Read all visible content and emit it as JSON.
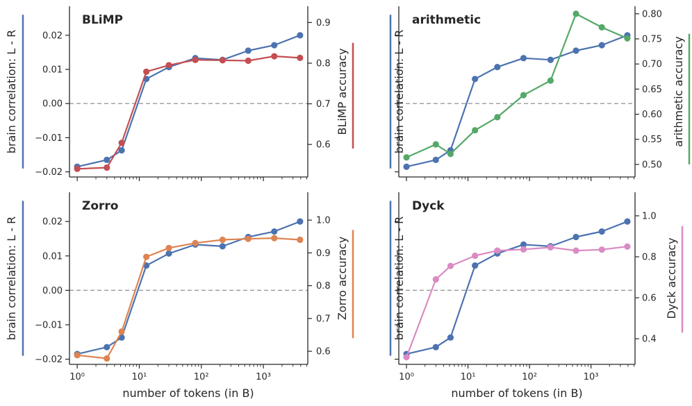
{
  "figure": {
    "xlabel": "number of tokens (in B)"
  },
  "styles": {
    "brain_color": "#4c72b0",
    "zero_line_color": "#999999"
  },
  "chart_data": [
    {
      "type": "line",
      "title": "BLiMP",
      "x": [
        1,
        3,
        5.2,
        13,
        30,
        80,
        220,
        570,
        1500,
        3900
      ],
      "xscale": "log",
      "xlim": [
        0.75,
        5200
      ],
      "xticks": [
        {
          "v": 1,
          "label": "10⁰"
        },
        {
          "v": 10,
          "label": "10¹"
        },
        {
          "v": 100,
          "label": "10²"
        },
        {
          "v": 1000,
          "label": "10³"
        }
      ],
      "left_axis": {
        "label": "brain correlation: L - R",
        "ylim": [
          -0.0215,
          0.0285
        ],
        "ticks": [
          -0.02,
          -0.01,
          0.0,
          0.01,
          0.02
        ],
        "tick_labels": [
          "−0.02",
          "−0.01",
          "0.00",
          "0.01",
          "0.02"
        ],
        "color": "#4c72b0"
      },
      "right_axis": {
        "label": "BLiMP accuracy",
        "ylim": [
          0.52,
          0.94
        ],
        "ticks": [
          0.6,
          0.7,
          0.8,
          0.9
        ],
        "tick_labels": [
          "0.6",
          "0.7",
          "0.8",
          "0.9"
        ],
        "color": "#c44e52",
        "bar_range": [
          0.59,
          0.85
        ]
      },
      "series": [
        {
          "name": "brain correlation",
          "axis": "left",
          "color": "#4c72b0",
          "values": [
            -0.0185,
            -0.0165,
            -0.0137,
            0.0072,
            0.0107,
            0.0133,
            0.0128,
            0.0155,
            0.0171,
            0.02
          ]
        },
        {
          "name": "BLiMP accuracy",
          "axis": "right",
          "color": "#c44e52",
          "values": [
            0.54,
            0.543,
            0.604,
            0.779,
            0.795,
            0.808,
            0.807,
            0.806,
            0.817,
            0.813
          ]
        }
      ]
    },
    {
      "type": "line",
      "title": "arithmetic",
      "x": [
        1,
        3,
        5.2,
        13,
        30,
        80,
        220,
        570,
        1500,
        3900
      ],
      "xscale": "log",
      "xlim": [
        0.75,
        5200
      ],
      "xticks": [
        {
          "v": 1,
          "label": "10⁰"
        },
        {
          "v": 10,
          "label": "10¹"
        },
        {
          "v": 100,
          "label": "10²"
        },
        {
          "v": 1000,
          "label": "10³"
        }
      ],
      "left_axis": {
        "label": "brain correlation: L - R",
        "ylim": [
          -0.0215,
          0.0285
        ],
        "ticks": [
          -0.02,
          -0.01,
          0.0,
          0.01,
          0.02
        ],
        "tick_labels": [
          "",
          "",
          "",
          "",
          ""
        ],
        "color": "#4c72b0"
      },
      "right_axis": {
        "label": "arithmetic accuracy",
        "ylim": [
          0.475,
          0.815
        ],
        "ticks": [
          0.5,
          0.55,
          0.6,
          0.65,
          0.7,
          0.75,
          0.8
        ],
        "tick_labels": [
          "0.50",
          "0.55",
          "0.60",
          "0.65",
          "0.70",
          "0.75",
          "0.80"
        ],
        "color": "#55a868",
        "bar_range": [
          0.5,
          0.76
        ]
      },
      "series": [
        {
          "name": "brain correlation",
          "axis": "left",
          "color": "#4c72b0",
          "values": [
            -0.0185,
            -0.0165,
            -0.0137,
            0.0072,
            0.0107,
            0.0133,
            0.0128,
            0.0155,
            0.0171,
            0.02
          ]
        },
        {
          "name": "arithmetic accuracy",
          "axis": "right",
          "color": "#55a868",
          "values": [
            0.514,
            0.54,
            0.521,
            0.568,
            0.594,
            0.638,
            0.667,
            0.8,
            0.773,
            0.751
          ]
        }
      ]
    },
    {
      "type": "line",
      "title": "Zorro",
      "x": [
        1,
        3,
        5.2,
        13,
        30,
        80,
        220,
        570,
        1500,
        3900
      ],
      "xscale": "log",
      "xlim": [
        0.75,
        5200
      ],
      "xticks": [
        {
          "v": 1,
          "label": "10⁰"
        },
        {
          "v": 10,
          "label": "10¹"
        },
        {
          "v": 100,
          "label": "10²"
        },
        {
          "v": 1000,
          "label": "10³"
        }
      ],
      "left_axis": {
        "label": "brain correlation: L - R",
        "ylim": [
          -0.0215,
          0.0285
        ],
        "ticks": [
          -0.02,
          -0.01,
          0.0,
          0.01,
          0.02
        ],
        "tick_labels": [
          "−0.02",
          "−0.01",
          "0.00",
          "0.01",
          "0.02"
        ],
        "color": "#4c72b0"
      },
      "right_axis": {
        "label": "Zorro accuracy",
        "ylim": [
          0.56,
          1.085
        ],
        "ticks": [
          0.6,
          0.7,
          0.8,
          0.9,
          1.0
        ],
        "tick_labels": [
          "0.6",
          "0.7",
          "0.8",
          "0.9",
          "1.0"
        ],
        "color": "#dd8452",
        "bar_range": [
          0.64,
          0.97
        ]
      },
      "series": [
        {
          "name": "brain correlation",
          "axis": "left",
          "color": "#4c72b0",
          "values": [
            -0.0185,
            -0.0165,
            -0.0137,
            0.0072,
            0.0107,
            0.0133,
            0.0128,
            0.0155,
            0.0171,
            0.02
          ]
        },
        {
          "name": "Zorro accuracy",
          "axis": "right",
          "color": "#dd8452",
          "values": [
            0.588,
            0.578,
            0.66,
            0.888,
            0.915,
            0.93,
            0.94,
            0.943,
            0.945,
            0.94
          ]
        }
      ]
    },
    {
      "type": "line",
      "title": "Dyck",
      "x": [
        1,
        3,
        5.2,
        13,
        30,
        80,
        220,
        570,
        1500,
        3900
      ],
      "xscale": "log",
      "xlim": [
        0.75,
        5200
      ],
      "xticks": [
        {
          "v": 1,
          "label": "10⁰"
        },
        {
          "v": 10,
          "label": "10¹"
        },
        {
          "v": 100,
          "label": "10²"
        },
        {
          "v": 1000,
          "label": "10³"
        }
      ],
      "left_axis": {
        "label": "brain correlation: L - R",
        "ylim": [
          -0.0215,
          0.0285
        ],
        "ticks": [
          -0.02,
          -0.01,
          0.0,
          0.01,
          0.02
        ],
        "tick_labels": [
          "",
          "",
          "",
          "",
          ""
        ],
        "color": "#4c72b0"
      },
      "right_axis": {
        "label": "Dyck accuracy",
        "ylim": [
          0.275,
          1.115
        ],
        "ticks": [
          0.4,
          0.6,
          0.8,
          1.0
        ],
        "tick_labels": [
          "0.4",
          "0.6",
          "0.8",
          "1.0"
        ],
        "color": "#da8bc3",
        "bar_range": [
          0.43,
          0.95
        ]
      },
      "series": [
        {
          "name": "brain correlation",
          "axis": "left",
          "color": "#4c72b0",
          "values": [
            -0.0185,
            -0.0165,
            -0.0137,
            0.0072,
            0.0107,
            0.0133,
            0.0128,
            0.0155,
            0.0171,
            0.02
          ]
        },
        {
          "name": "Dyck accuracy",
          "axis": "right",
          "color": "#da8bc3",
          "values": [
            0.31,
            0.69,
            0.755,
            0.805,
            0.83,
            0.836,
            0.846,
            0.83,
            0.835,
            0.85
          ]
        }
      ]
    }
  ]
}
